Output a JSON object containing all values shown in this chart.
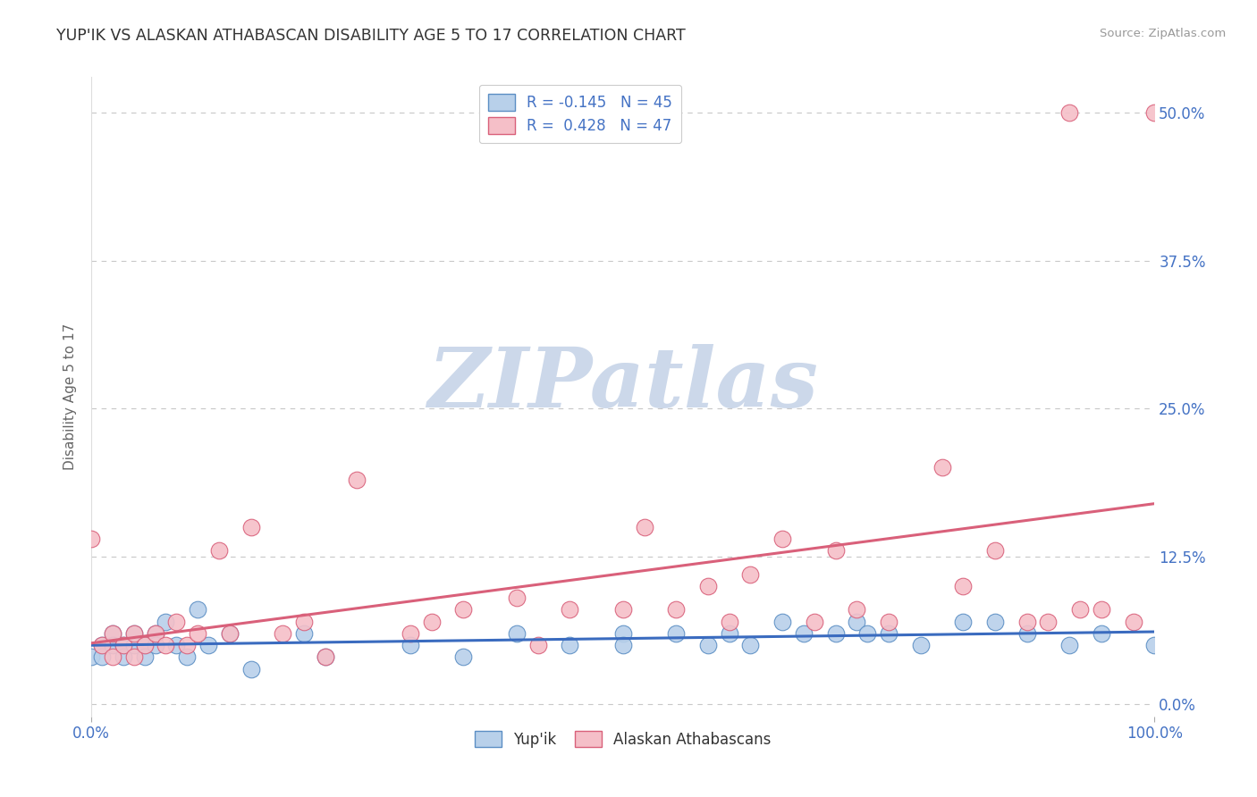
{
  "title": "YUP'IK VS ALASKAN ATHABASCAN DISABILITY AGE 5 TO 17 CORRELATION CHART",
  "source_text": "Source: ZipAtlas.com",
  "ylabel": "Disability Age 5 to 17",
  "xlim": [
    0.0,
    1.0
  ],
  "ylim": [
    -0.01,
    0.53
  ],
  "yticks": [
    0.0,
    0.125,
    0.25,
    0.375,
    0.5
  ],
  "ytick_labels": [
    "0.0%",
    "12.5%",
    "25.0%",
    "37.5%",
    "50.0%"
  ],
  "xtick_labels": [
    "0.0%",
    "100.0%"
  ],
  "background_color": "#ffffff",
  "grid_color": "#c8c8c8",
  "title_color": "#333333",
  "axis_label_color": "#666666",
  "source_color": "#999999",
  "series1_label": "Yup'ik",
  "series1_color": "#b8d0ea",
  "series1_edge_color": "#5b8ec4",
  "series1_R": -0.145,
  "series1_N": 45,
  "series1_line_color": "#3a6bbf",
  "series2_label": "Alaskan Athabascans",
  "series2_color": "#f5bfc8",
  "series2_edge_color": "#d9607a",
  "series2_R": 0.428,
  "series2_N": 47,
  "series2_line_color": "#d9607a",
  "series1_x": [
    0.0,
    0.01,
    0.01,
    0.02,
    0.02,
    0.03,
    0.03,
    0.04,
    0.04,
    0.05,
    0.05,
    0.06,
    0.06,
    0.07,
    0.08,
    0.09,
    0.1,
    0.11,
    0.13,
    0.15,
    0.2,
    0.22,
    0.3,
    0.35,
    0.4,
    0.45,
    0.5,
    0.5,
    0.55,
    0.58,
    0.6,
    0.62,
    0.65,
    0.67,
    0.7,
    0.72,
    0.73,
    0.75,
    0.78,
    0.82,
    0.85,
    0.88,
    0.92,
    0.95,
    1.0
  ],
  "series1_y": [
    0.04,
    0.05,
    0.04,
    0.06,
    0.05,
    0.05,
    0.04,
    0.06,
    0.05,
    0.05,
    0.04,
    0.06,
    0.05,
    0.07,
    0.05,
    0.04,
    0.08,
    0.05,
    0.06,
    0.03,
    0.06,
    0.04,
    0.05,
    0.04,
    0.06,
    0.05,
    0.06,
    0.05,
    0.06,
    0.05,
    0.06,
    0.05,
    0.07,
    0.06,
    0.06,
    0.07,
    0.06,
    0.06,
    0.05,
    0.07,
    0.07,
    0.06,
    0.05,
    0.06,
    0.05
  ],
  "series2_x": [
    0.0,
    0.01,
    0.02,
    0.02,
    0.03,
    0.04,
    0.04,
    0.05,
    0.06,
    0.07,
    0.08,
    0.09,
    0.1,
    0.12,
    0.13,
    0.15,
    0.18,
    0.2,
    0.22,
    0.25,
    0.3,
    0.32,
    0.35,
    0.4,
    0.42,
    0.45,
    0.5,
    0.52,
    0.55,
    0.58,
    0.6,
    0.62,
    0.65,
    0.68,
    0.7,
    0.72,
    0.75,
    0.8,
    0.82,
    0.85,
    0.88,
    0.9,
    0.92,
    0.93,
    0.95,
    0.98,
    1.0
  ],
  "series2_y": [
    0.14,
    0.05,
    0.04,
    0.06,
    0.05,
    0.06,
    0.04,
    0.05,
    0.06,
    0.05,
    0.07,
    0.05,
    0.06,
    0.13,
    0.06,
    0.15,
    0.06,
    0.07,
    0.04,
    0.19,
    0.06,
    0.07,
    0.08,
    0.09,
    0.05,
    0.08,
    0.08,
    0.15,
    0.08,
    0.1,
    0.07,
    0.11,
    0.14,
    0.07,
    0.13,
    0.08,
    0.07,
    0.2,
    0.1,
    0.13,
    0.07,
    0.07,
    0.5,
    0.08,
    0.08,
    0.07,
    0.5
  ],
  "watermark_text": "ZIPatlas",
  "watermark_color": "#ccd8ea",
  "legend_R1_text": "R = -0.145   N = 45",
  "legend_R2_text": "R =  0.428   N = 47"
}
